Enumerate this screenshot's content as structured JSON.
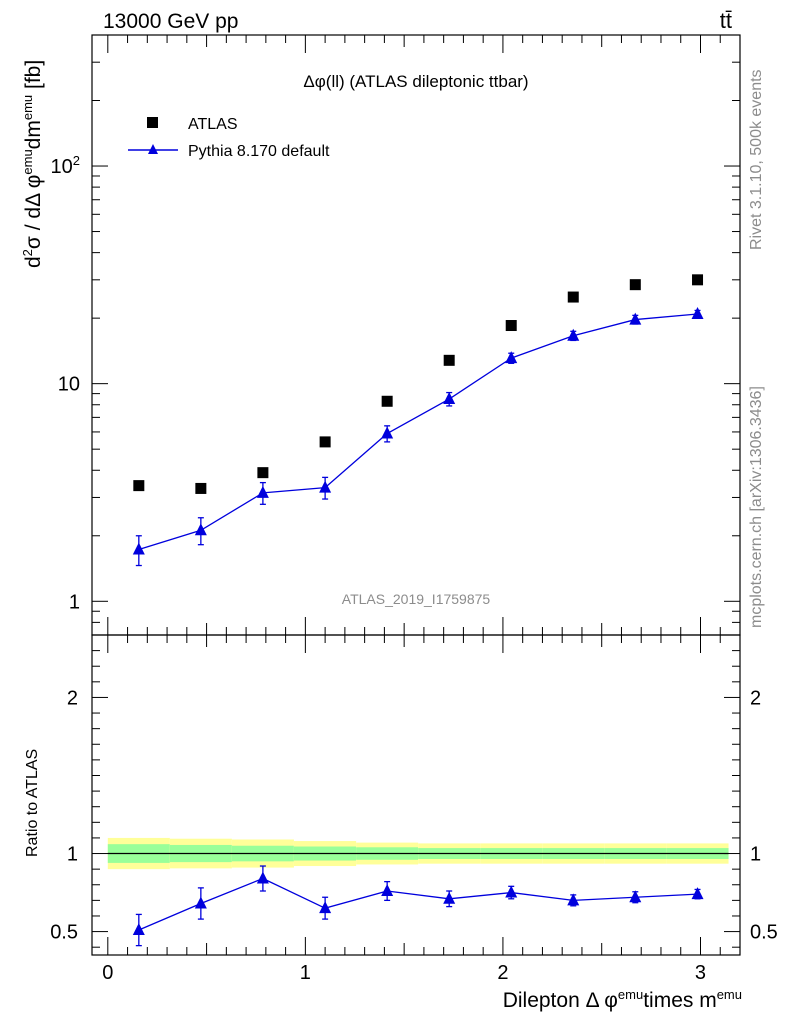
{
  "header": {
    "left": "13000 GeV pp",
    "right": "tt̄"
  },
  "side": {
    "top": "Rivet 3.1.10,  500k events",
    "bottom": "mcplots.cern.ch [arXiv:1306.3436]"
  },
  "watermark": "ATLAS_2019_I1759875",
  "colors": {
    "mc": "#0000dd",
    "data": "#000000",
    "band_inner": "#99ff99",
    "band_outer": "#ffff99",
    "grey_text": "#8c8c8c"
  },
  "chart_data": [
    {
      "type": "scatter",
      "title": "Δφ(ll) (ATLAS dileptonic ttbar)",
      "ylabel": "d²σ / dΔφ^emu dm^emu [fb]",
      "yscale": "log",
      "ylim": [
        0.7,
        400
      ],
      "xlim": [
        -0.08,
        3.2
      ],
      "yticks": [
        {
          "v": 1,
          "label": "1"
        },
        {
          "v": 10,
          "label": "10"
        },
        {
          "v": 100,
          "label": "10²"
        }
      ],
      "legend_placement": "top-left",
      "series": [
        {
          "name": "ATLAS",
          "marker": "square",
          "x": [
            0.157,
            0.471,
            0.785,
            1.1,
            1.414,
            1.728,
            2.042,
            2.356,
            2.67,
            2.985
          ],
          "y": [
            3.4,
            3.3,
            3.9,
            5.4,
            8.3,
            12.8,
            18.5,
            25,
            28.5,
            30
          ]
        },
        {
          "name": "Pythia 8.170 default",
          "marker": "triangle",
          "x": [
            0.157,
            0.471,
            0.785,
            1.1,
            1.414,
            1.728,
            2.042,
            2.356,
            2.67,
            2.985
          ],
          "y": [
            1.73,
            2.12,
            3.15,
            3.33,
            5.9,
            8.5,
            13.1,
            16.6,
            19.7,
            20.9
          ],
          "err": [
            0.27,
            0.3,
            0.36,
            0.38,
            0.5,
            0.6,
            0.7,
            0.8,
            0.9,
            0.8
          ]
        }
      ]
    },
    {
      "type": "line",
      "ylabel": "Ratio to ATLAS",
      "xlabel": "Dilepton Δ φ^emu times m^emu",
      "ylim": [
        0.35,
        2.4
      ],
      "xlim": [
        -0.08,
        3.2
      ],
      "yticks": [
        {
          "v": 0.5,
          "label": "0.5"
        },
        {
          "v": 1,
          "label": "1"
        },
        {
          "v": 2,
          "label": "2"
        }
      ],
      "xticks": [
        {
          "v": 0,
          "label": "0"
        },
        {
          "v": 1,
          "label": "1"
        },
        {
          "v": 2,
          "label": "2"
        },
        {
          "v": 3,
          "label": "3"
        }
      ],
      "band_edges": [
        0.0,
        0.314,
        0.628,
        0.942,
        1.257,
        1.571,
        1.885,
        2.199,
        2.513,
        2.827,
        3.142
      ],
      "band_inner": [
        0.06,
        0.055,
        0.05,
        0.045,
        0.04,
        0.035,
        0.035,
        0.035,
        0.035,
        0.035
      ],
      "band_outer": [
        0.1,
        0.095,
        0.09,
        0.08,
        0.07,
        0.065,
        0.065,
        0.065,
        0.065,
        0.065
      ],
      "series": [
        {
          "name": "Pythia 8.170 default",
          "x": [
            0.157,
            0.471,
            0.785,
            1.1,
            1.414,
            1.728,
            2.042,
            2.356,
            2.67,
            2.985
          ],
          "y": [
            0.51,
            0.68,
            0.84,
            0.65,
            0.76,
            0.71,
            0.75,
            0.7,
            0.72,
            0.74
          ],
          "err": [
            0.1,
            0.1,
            0.08,
            0.07,
            0.06,
            0.05,
            0.04,
            0.035,
            0.035,
            0.03
          ]
        }
      ]
    }
  ]
}
